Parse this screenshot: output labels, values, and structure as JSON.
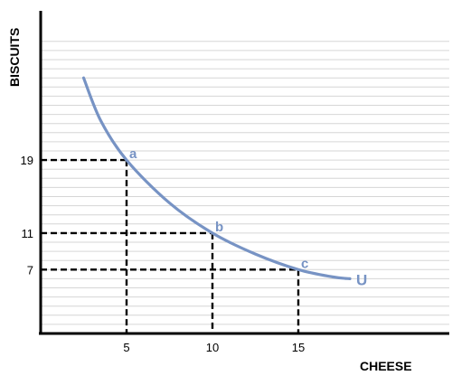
{
  "chart_data": {
    "type": "line",
    "xlabel": "CHEESE",
    "ylabel": "BISCUITS",
    "xlim": [
      0,
      24
    ],
    "ylim": [
      0,
      32
    ],
    "grid": true,
    "x_ticks": [
      5,
      10,
      15
    ],
    "y_ticks": [
      7,
      11,
      19
    ],
    "series": [
      {
        "name": "U",
        "color": "#7793c4",
        "points": [
          {
            "x": 2.5,
            "y": 28
          },
          {
            "x": 3.5,
            "y": 23.3
          },
          {
            "x": 5,
            "y": 19
          },
          {
            "x": 7.5,
            "y": 14.3
          },
          {
            "x": 10,
            "y": 11
          },
          {
            "x": 12.5,
            "y": 8.7
          },
          {
            "x": 15,
            "y": 7
          },
          {
            "x": 17,
            "y": 6.2
          },
          {
            "x": 18,
            "y": 6
          }
        ]
      }
    ],
    "marked_points": [
      {
        "label": "a",
        "x": 5,
        "y": 19
      },
      {
        "label": "b",
        "x": 10,
        "y": 11
      },
      {
        "label": "c",
        "x": 15,
        "y": 7
      }
    ]
  }
}
